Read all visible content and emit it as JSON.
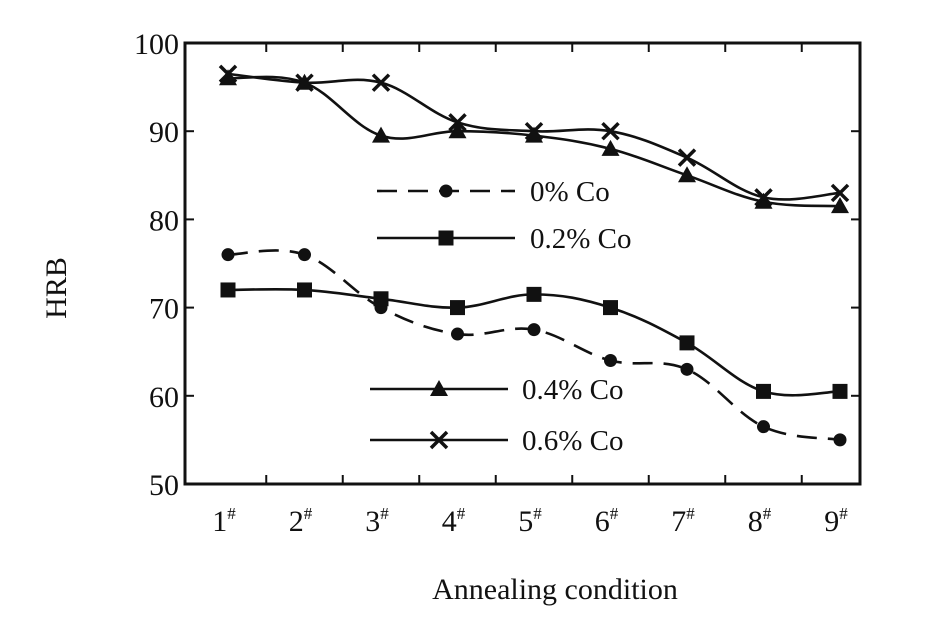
{
  "chart_data": {
    "type": "line",
    "xlabel": "Annealing condition",
    "ylabel": "HRB",
    "ylim": [
      50,
      100
    ],
    "yticks": [
      50,
      60,
      70,
      80,
      90,
      100
    ],
    "categories": [
      "1",
      "2",
      "3",
      "4",
      "5",
      "6",
      "7",
      "8",
      "9"
    ],
    "category_suffix": "#",
    "grid": false,
    "series": [
      {
        "name": "0% Co",
        "marker": "circle",
        "dashed": true,
        "values": [
          76,
          76,
          70,
          67,
          67.5,
          64,
          63,
          56.5,
          55
        ]
      },
      {
        "name": "0.2% Co",
        "marker": "square",
        "dashed": false,
        "values": [
          72,
          72,
          71,
          70,
          71.5,
          70,
          66,
          60.5,
          60.5
        ]
      },
      {
        "name": "0.4% Co",
        "marker": "triangle",
        "dashed": false,
        "values": [
          96,
          95.5,
          89.5,
          90,
          89.5,
          88,
          85,
          82,
          81.5
        ]
      },
      {
        "name": "0.6% Co",
        "marker": "cross",
        "dashed": false,
        "values": [
          96.5,
          95.5,
          95.5,
          91,
          90,
          90,
          87,
          82.5,
          83
        ]
      }
    ]
  }
}
